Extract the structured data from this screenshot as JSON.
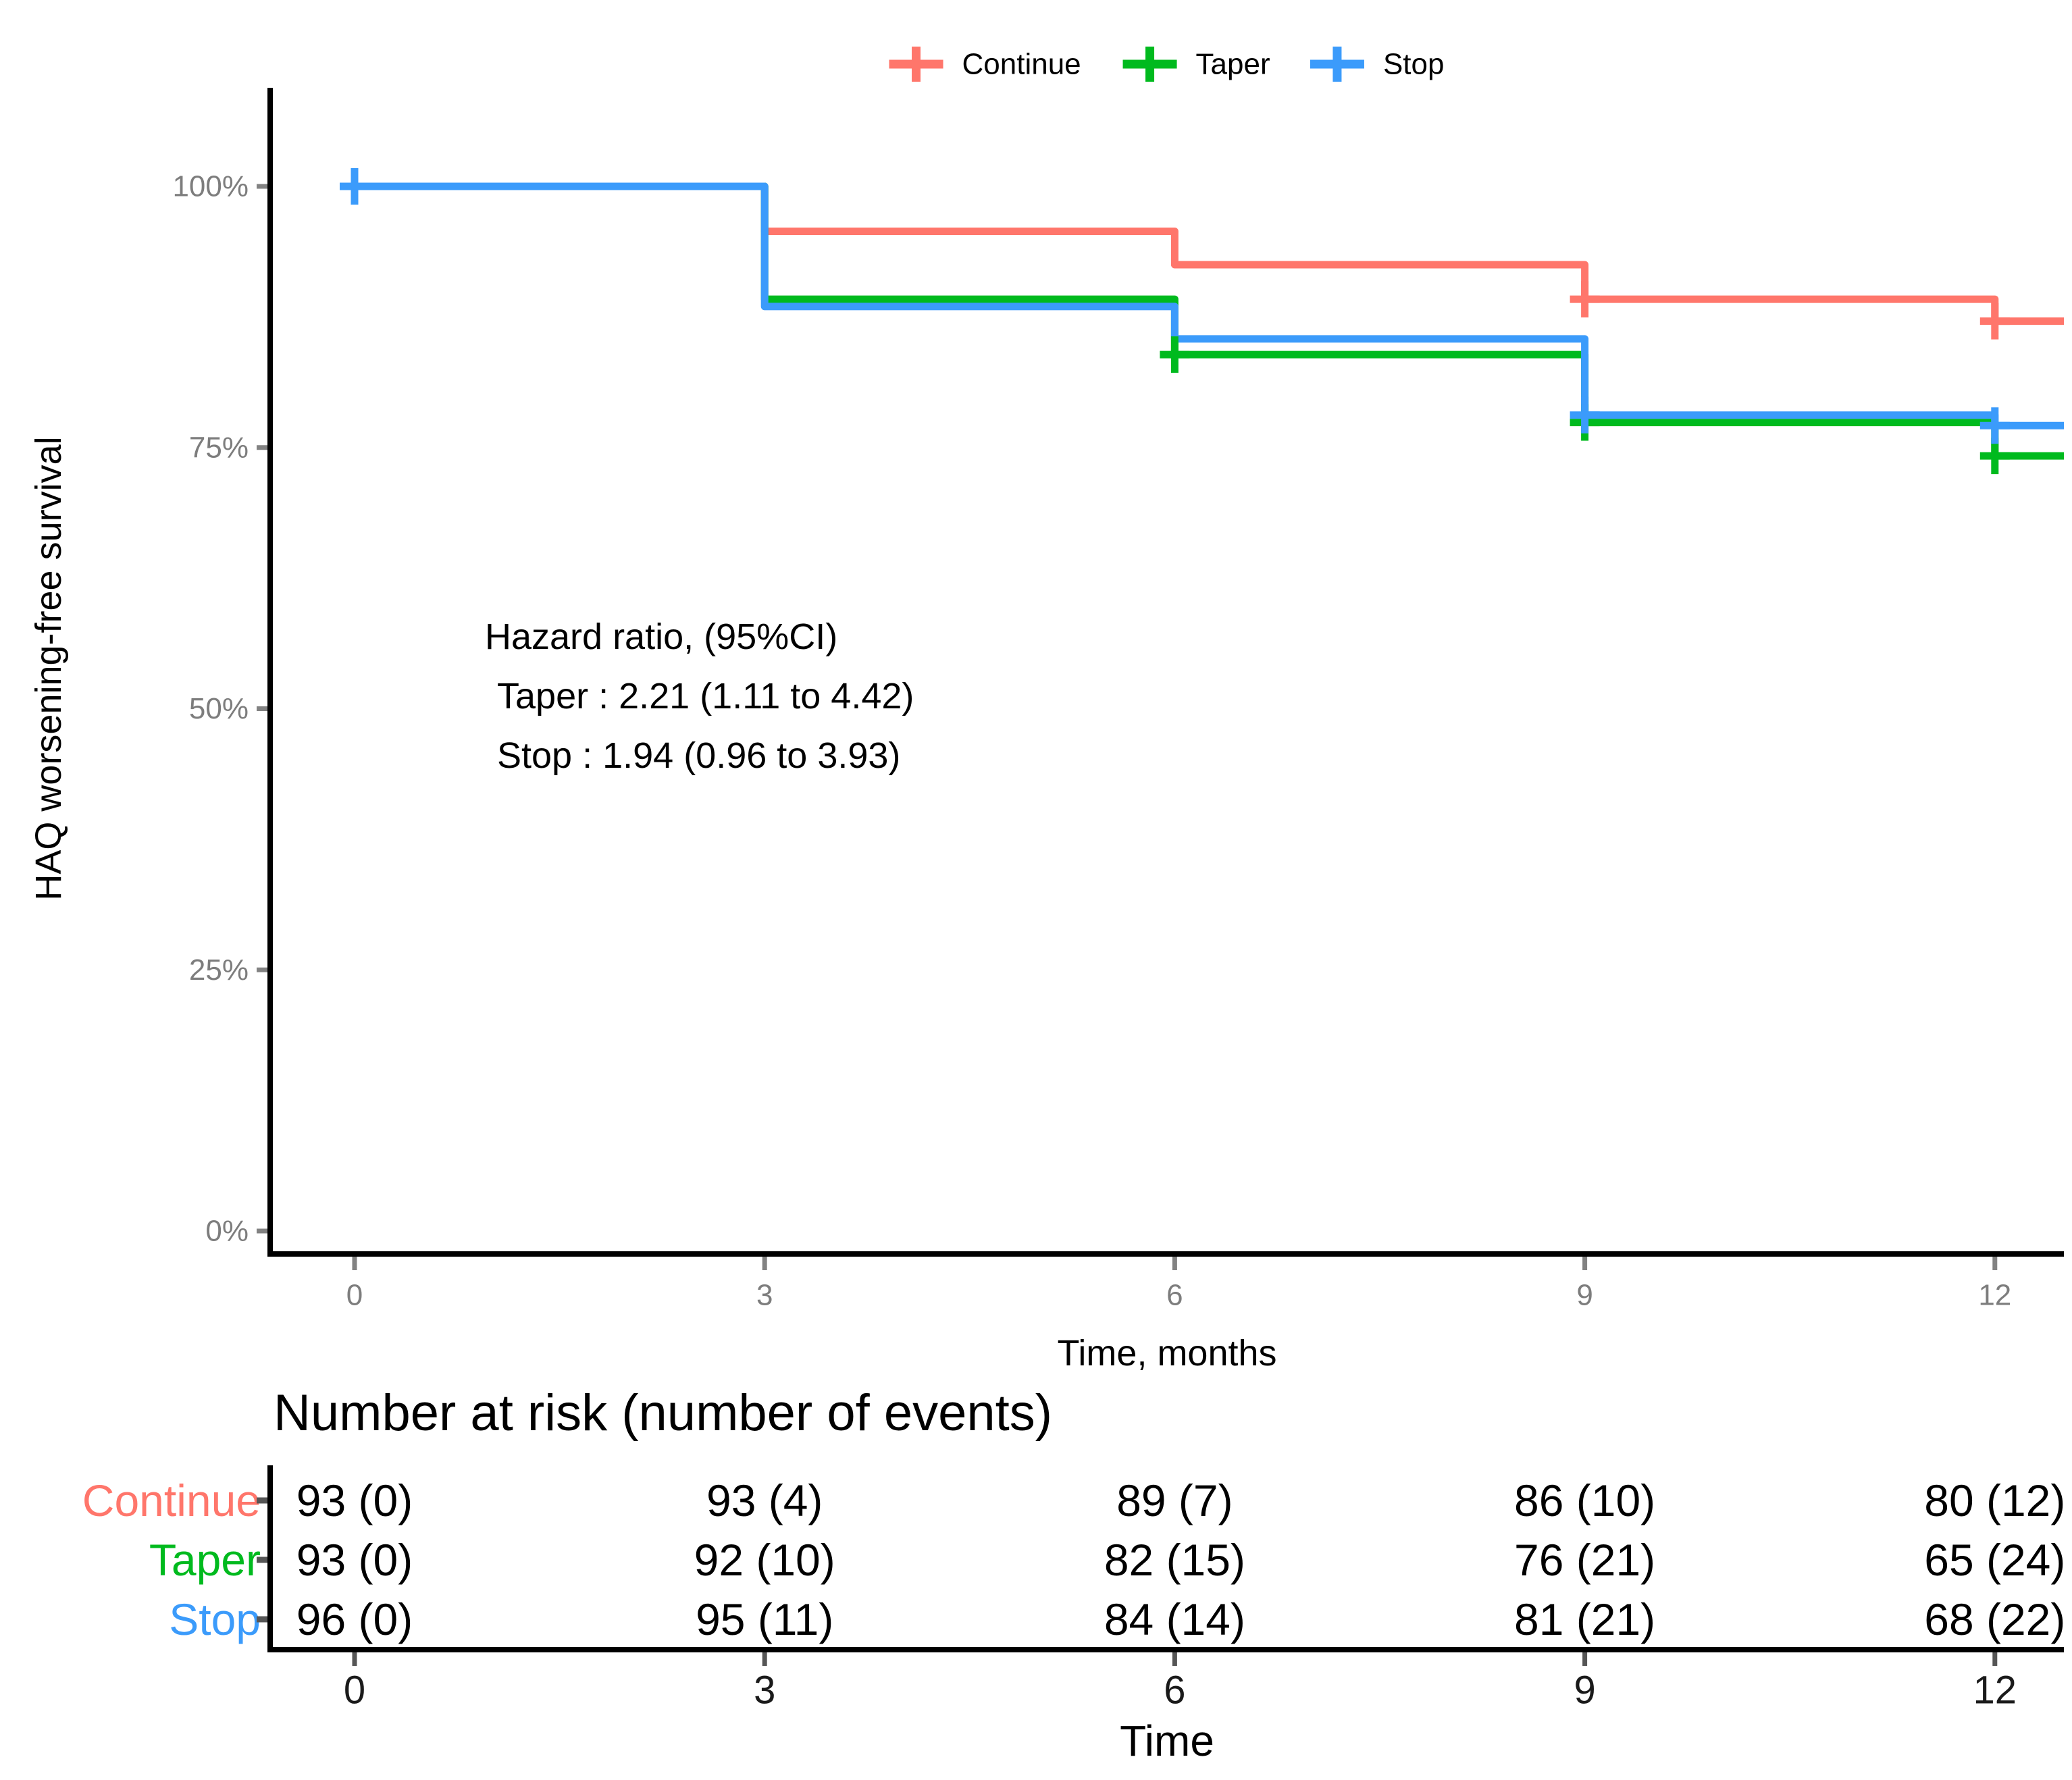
{
  "chart_data": {
    "type": "line",
    "subtype": "kaplan-meier-step-survival",
    "title": "",
    "x": {
      "label": "Time, months",
      "ticks": [
        0,
        3,
        6,
        9,
        12
      ],
      "range": [
        0,
        12.6
      ]
    },
    "y": {
      "label": "HAQ worsening-free survival",
      "tick_labels": [
        "0%",
        "25%",
        "50%",
        "75%",
        "100%"
      ],
      "tick_values": [
        0,
        25,
        50,
        75,
        100
      ],
      "range": [
        0,
        100
      ]
    },
    "legend": {
      "position": "top",
      "entries": [
        {
          "label": "Continue",
          "color": "#FF766B"
        },
        {
          "label": "Taper",
          "color": "#00BA1E"
        },
        {
          "label": "Stop",
          "color": "#3B9BFB"
        }
      ]
    },
    "series": [
      {
        "name": "Continue",
        "color": "#FF766B",
        "times": [
          0,
          3,
          6,
          9,
          12
        ],
        "survival_pct": [
          100,
          95.7,
          92.5,
          89.2,
          87.1
        ],
        "censor_marks": [
          {
            "t": 9,
            "pct": 89.2
          },
          {
            "t": 12,
            "pct": 87.1
          }
        ]
      },
      {
        "name": "Taper",
        "color": "#00BA1E",
        "times": [
          0,
          3,
          6,
          9,
          12
        ],
        "survival_pct": [
          100,
          89.2,
          83.9,
          77.4,
          74.2
        ],
        "censor_marks": [
          {
            "t": 6,
            "pct": 83.9
          },
          {
            "t": 9,
            "pct": 77.4
          },
          {
            "t": 12,
            "pct": 74.2
          }
        ]
      },
      {
        "name": "Stop",
        "color": "#3B9BFB",
        "times": [
          0,
          3,
          6,
          9,
          12
        ],
        "survival_pct": [
          100,
          88.5,
          85.4,
          78.1,
          77.1
        ],
        "censor_marks": [
          {
            "t": 0,
            "pct": 100
          },
          {
            "t": 9,
            "pct": 78.1
          },
          {
            "t": 12,
            "pct": 77.1
          }
        ]
      }
    ],
    "annotation": {
      "lines": [
        "Hazard ratio, (95%CI)",
        "Taper : 2.21 (1.11 to 4.42)",
        "Stop : 1.94 (0.96 to 3.93)"
      ]
    },
    "risk_table": {
      "title": "Number at risk (number of events)",
      "x_label": "Time",
      "x_ticks": [
        0,
        3,
        6,
        9,
        12
      ],
      "rows": [
        {
          "label": "Continue",
          "color": "#FF766B",
          "values": [
            "93 (0)",
            "93 (4)",
            "89 (7)",
            "86 (10)",
            "80 (12)"
          ]
        },
        {
          "label": "Taper",
          "color": "#00BA1E",
          "values": [
            "93 (0)",
            "92 (10)",
            "82 (15)",
            "76 (21)",
            "65 (24)"
          ]
        },
        {
          "label": "Stop",
          "color": "#3B9BFB",
          "values": [
            "96 (0)",
            "95 (11)",
            "84 (14)",
            "81 (21)",
            "68 (22)"
          ]
        }
      ]
    },
    "colors": {
      "axis": "#000000",
      "tick_text": "#7d7d7d",
      "tick_mark": "#828282",
      "risk_tick_mark": "#565656",
      "risk_tick_text": "#1a1a1a",
      "text": "#000000"
    }
  }
}
